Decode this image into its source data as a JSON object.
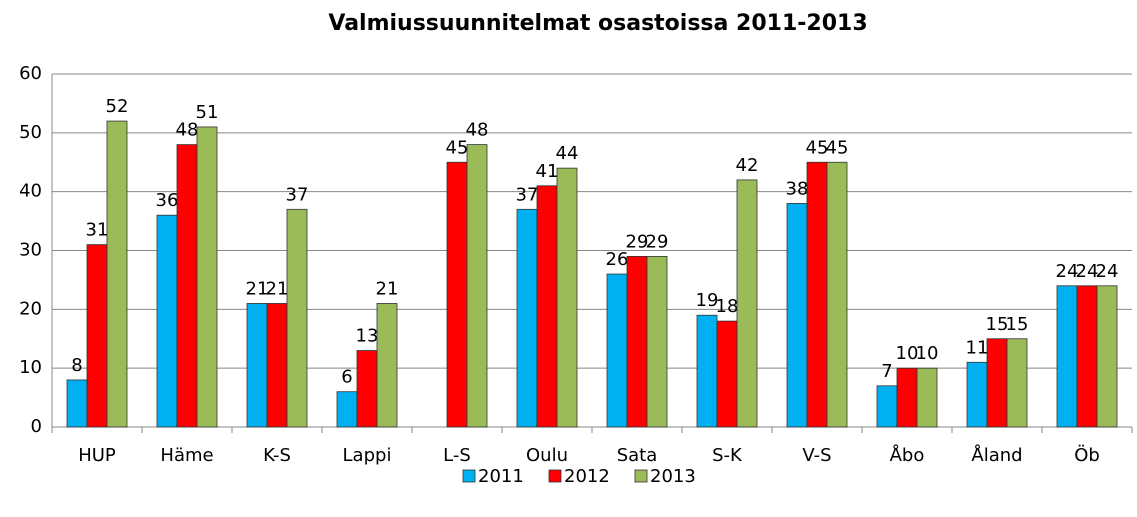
{
  "chart_data": {
    "type": "bar",
    "title": "Valmiussuunnitelmat osastoissa 2011-2013",
    "categories": [
      "HUP",
      "Häme",
      "K-S",
      "Lappi",
      "L-S",
      "Oulu",
      "Sata",
      "S-K",
      "V-S",
      "Åbo",
      "Åland",
      "Öb"
    ],
    "series": [
      {
        "name": "2011",
        "color": "#00b0f0",
        "values": [
          8,
          36,
          21,
          6,
          null,
          37,
          26,
          19,
          38,
          7,
          11,
          24
        ]
      },
      {
        "name": "2012",
        "color": "#ff0000",
        "values": [
          31,
          48,
          21,
          13,
          45,
          41,
          29,
          18,
          45,
          10,
          15,
          24
        ]
      },
      {
        "name": "2013",
        "color": "#9bbb59",
        "values": [
          52,
          51,
          37,
          21,
          48,
          44,
          29,
          42,
          45,
          10,
          15,
          24
        ]
      }
    ],
    "ylim": [
      0,
      60
    ],
    "yticks": [
      0,
      10,
      20,
      30,
      40,
      50,
      60
    ],
    "grid": true,
    "legend": "bottom"
  }
}
